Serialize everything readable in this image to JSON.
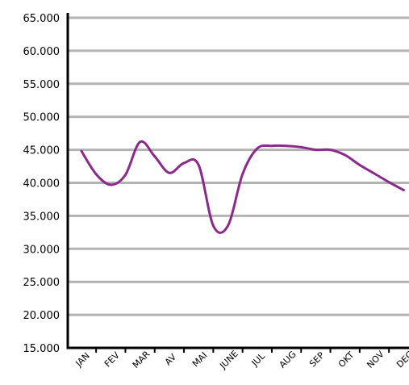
{
  "chart_data": {
    "type": "line",
    "title": "",
    "xlabel": "",
    "ylabel": "",
    "grid": true,
    "categories": [
      "JAN",
      "FEV",
      "MAR",
      "AV",
      "MAI",
      "JUNE",
      "JUL",
      "AUG",
      "SEP",
      "OKT",
      "NOV",
      "DEC"
    ],
    "y_ticks": [
      "15.000",
      "20.000",
      "25.000",
      "30.000",
      "35.000",
      "40.000",
      "45.000",
      "50.000",
      "55.000",
      "60.000",
      "65.000"
    ],
    "ylim": [
      15000,
      65000
    ],
    "x": [
      0,
      0.5,
      1,
      1.5,
      2,
      2.5,
      3,
      3.5,
      4,
      4.5,
      5,
      5.5,
      6,
      6.5,
      7,
      7.5,
      8,
      8.5,
      9,
      9.5,
      10,
      10.5,
      11
    ],
    "series": [
      {
        "values": [
          44800,
          41300,
          39700,
          41200,
          46200,
          44000,
          41500,
          43000,
          42700,
          33500,
          33500,
          41300,
          45200,
          45600,
          45600,
          45400,
          45000,
          45000,
          44200,
          42700,
          41400,
          40100,
          38900
        ]
      }
    ],
    "colors": {
      "line": "#8b2a8b",
      "grid": "#b3b3b3",
      "axis": "#000000"
    }
  }
}
